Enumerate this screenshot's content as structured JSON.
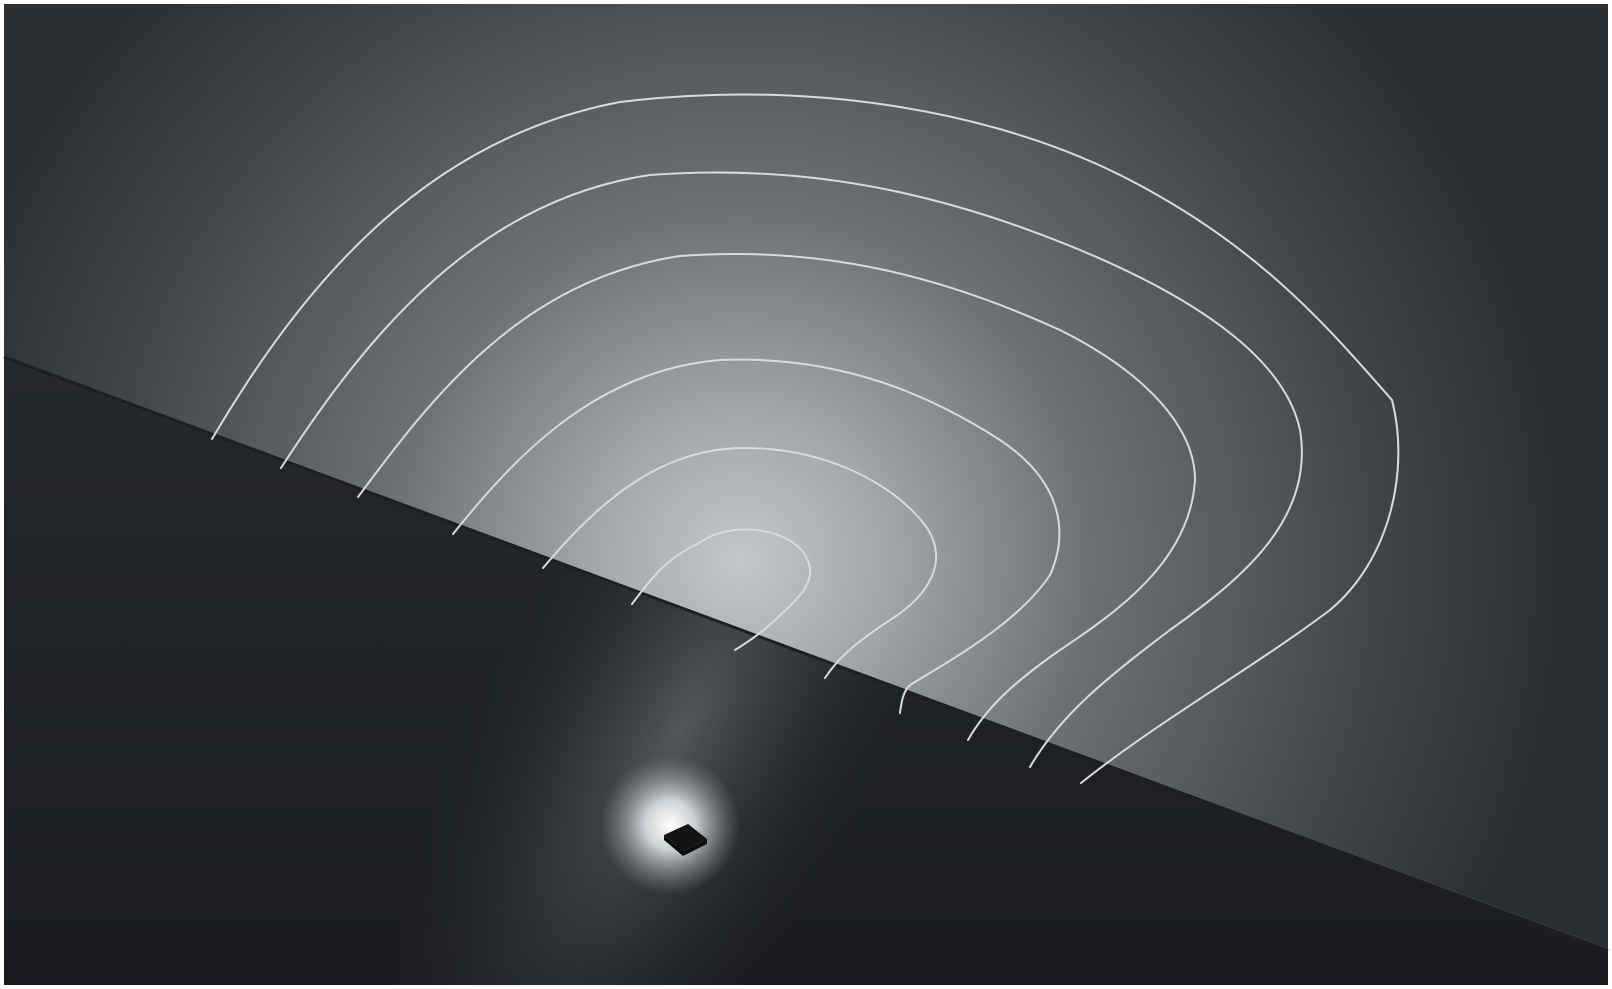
{
  "scene": {
    "colors": {
      "frame": "#ffffff",
      "wall_dark": "#2b2e31",
      "wall_glow_center": "#c2c5c7",
      "wall_glow_mid": "#6c6f72",
      "floor_dark": "#1c1e21",
      "floor_mid": "#34373b",
      "beam_light": "#f4f6f8",
      "isolux_line": "#d8dadb",
      "fixture": "#121315"
    },
    "isolux_contours": [
      "innermost",
      "ring-2",
      "ring-3",
      "ring-4",
      "ring-5",
      "outermost"
    ],
    "fixture_icon": "in-ground-uplight"
  }
}
